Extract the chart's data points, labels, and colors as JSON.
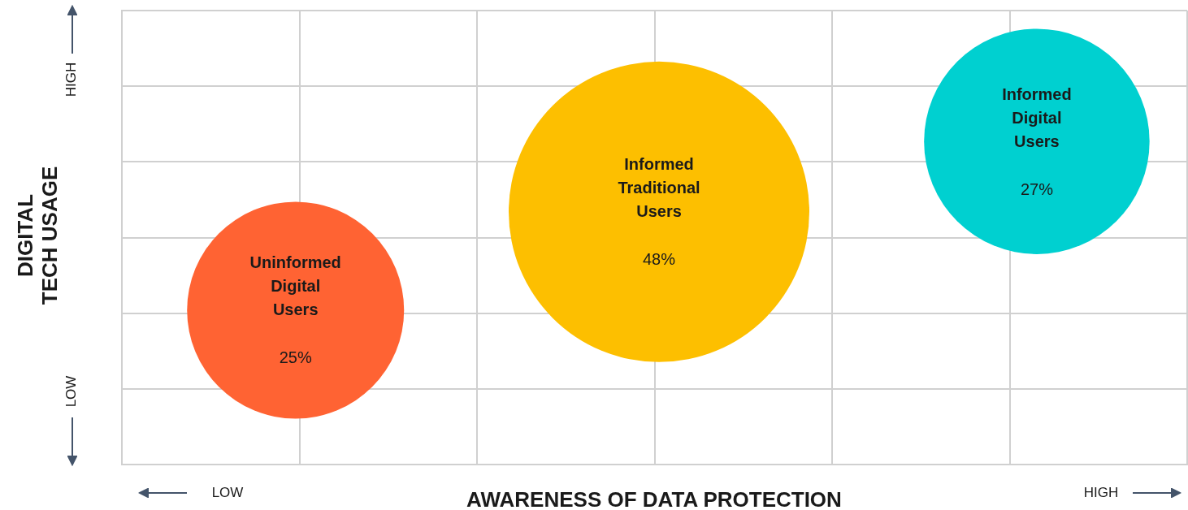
{
  "chart_data": {
    "type": "other",
    "xlabel": "AWARENESS OF DATA PROTECTION",
    "ylabel": "DIGITAL\nTECH USAGE",
    "annotations": [
      "HIGH",
      "LOW",
      "LOW",
      "HIGH"
    ],
    "series": [
      {
        "name": "Uninformed Digital Users",
        "color": "#ff6333",
        "values": [
          25
        ],
        "value_labels": [
          "25%"
        ]
      },
      {
        "name": "Informed Traditional Users",
        "color": "#fdbf00",
        "values": [
          48
        ],
        "value_labels": [
          "48%"
        ]
      },
      {
        "name": "Informed Digital Users",
        "color": "#00d0d0",
        "values": [
          27
        ],
        "value_labels": [
          "27%"
        ]
      }
    ]
  }
}
